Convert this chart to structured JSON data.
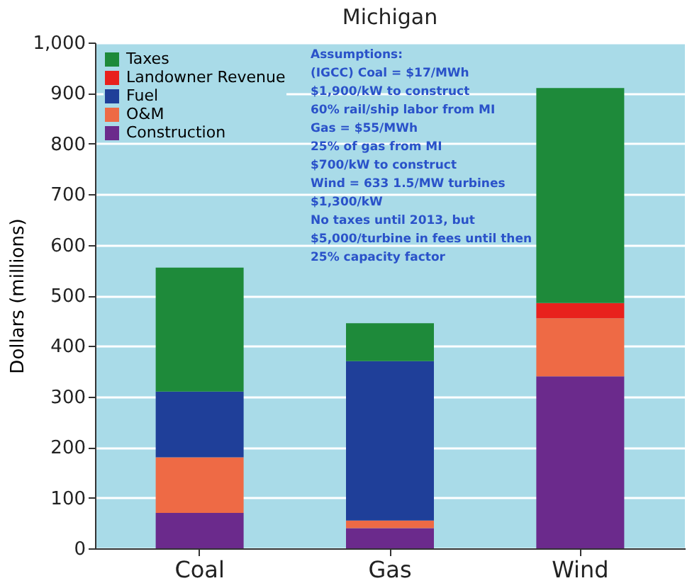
{
  "chart_data": {
    "type": "bar",
    "stacked": true,
    "title": "Michigan",
    "ylabel": "Dollars (millions)",
    "categories": [
      "Coal",
      "Gas",
      "Wind"
    ],
    "series": [
      {
        "name": "Construction",
        "color": "#6b2a8c",
        "values": [
          70,
          40,
          340
        ]
      },
      {
        "name": "O&M",
        "color": "#ee6a45",
        "values": [
          110,
          15,
          115
        ]
      },
      {
        "name": "Fuel",
        "color": "#1f3f99",
        "values": [
          130,
          315,
          0
        ]
      },
      {
        "name": "Landowner Revenue",
        "color": "#e8211d",
        "values": [
          0,
          0,
          30
        ]
      },
      {
        "name": "Taxes",
        "color": "#1e8a3a",
        "values": [
          245,
          75,
          425
        ]
      }
    ],
    "ylim": [
      0,
      1000
    ],
    "yticks": [
      0,
      100,
      200,
      300,
      400,
      500,
      600,
      700,
      800,
      900,
      {
        "value": 1000,
        "label": "1,000"
      }
    ],
    "grid": "y",
    "legend": "top left",
    "annotations": [
      "Assumptions:",
      "(IGCC) Coal = $17/MWh",
      "$1,900/kW to construct",
      "60% rail/ship labor from MI",
      "Gas = $55/MWh",
      "25% of gas from MI",
      "$700/kW to construct",
      "Wind = 633 1.5/MW turbines",
      "$1,300/kW",
      "No taxes until 2013, but",
      "$5,000/turbine in fees until then",
      "25% capacity factor"
    ]
  }
}
